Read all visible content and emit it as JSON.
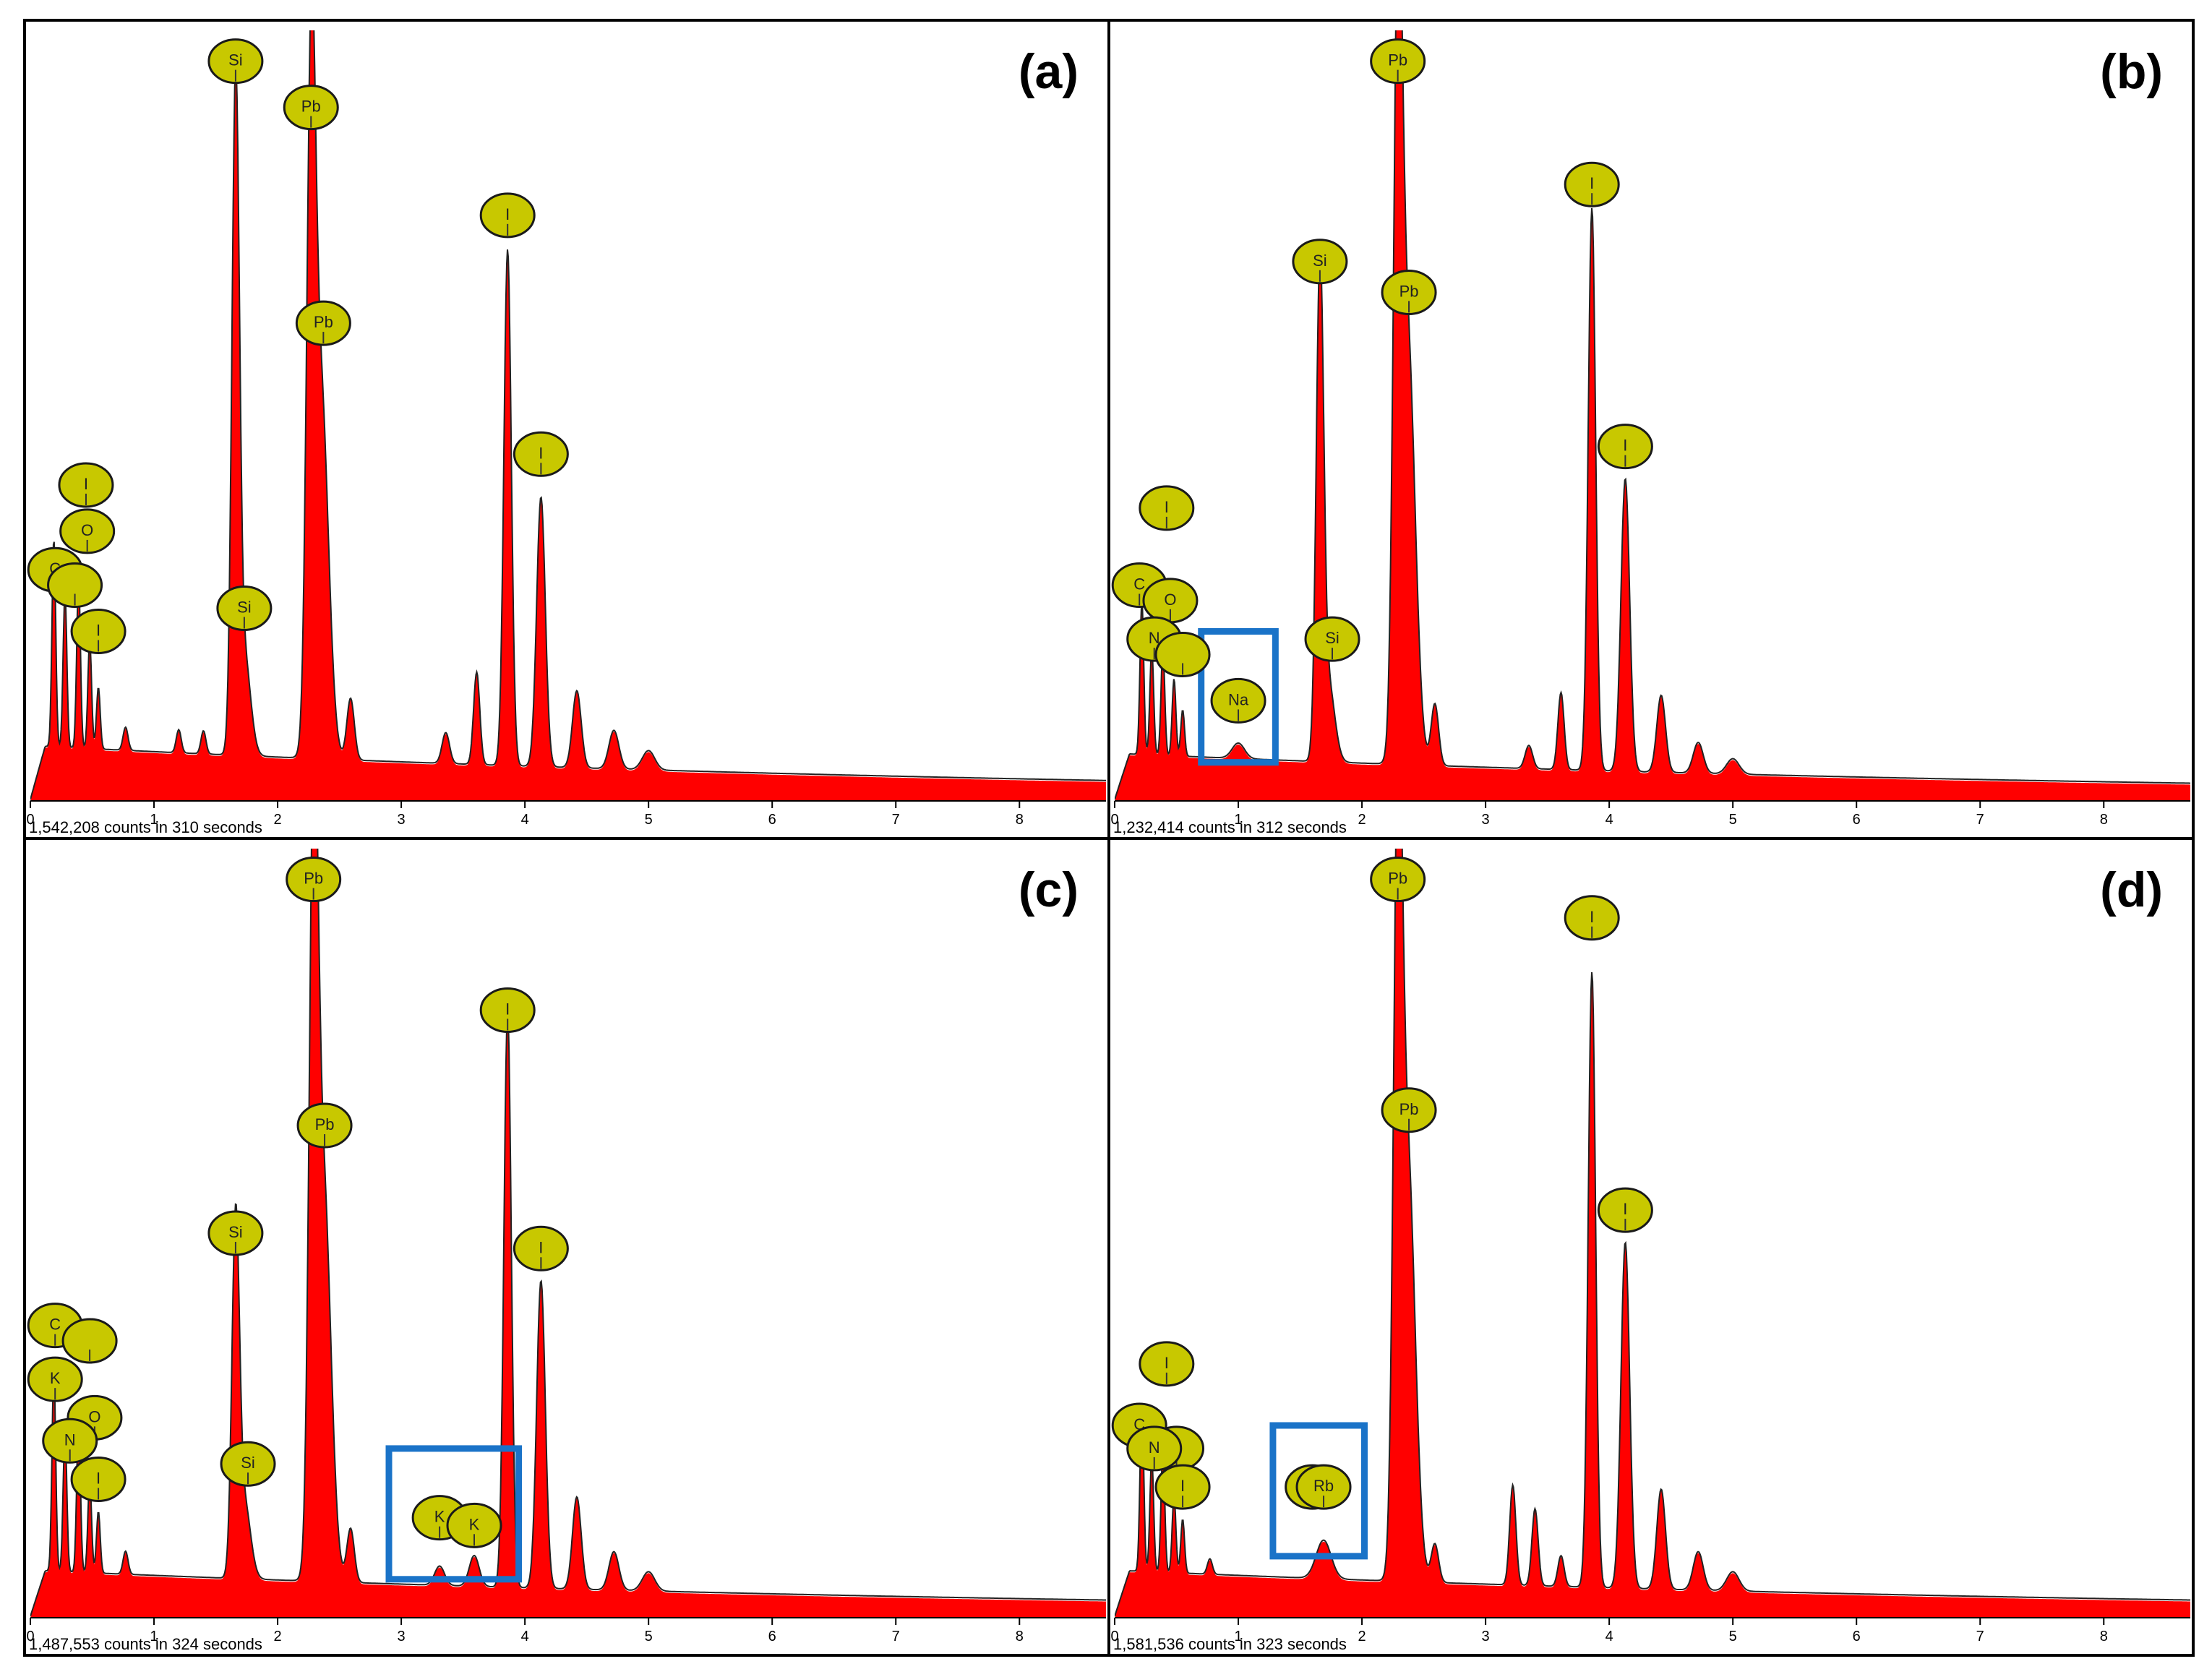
{
  "chart_data": [
    {
      "type": "area",
      "panel_label": "(a)",
      "caption": "1,542,208 counts in 310 seconds",
      "xlabel": "",
      "ylabel": "",
      "xlim": [
        0,
        8.7
      ],
      "x_ticks": [
        0,
        1,
        2,
        3,
        4,
        5,
        6,
        7,
        8
      ],
      "ylim": [
        0,
        100
      ],
      "baseline": 7,
      "peaks": [
        {
          "x": 0.19,
          "h": 27,
          "w": 0.015
        },
        {
          "x": 0.28,
          "h": 20,
          "w": 0.015
        },
        {
          "x": 0.39,
          "h": 22,
          "w": 0.015
        },
        {
          "x": 0.48,
          "h": 14,
          "w": 0.015
        },
        {
          "x": 0.55,
          "h": 8,
          "w": 0.015
        },
        {
          "x": 0.77,
          "h": 3,
          "w": 0.02
        },
        {
          "x": 1.2,
          "h": 3,
          "w": 0.02
        },
        {
          "x": 1.4,
          "h": 3,
          "w": 0.02
        },
        {
          "x": 1.66,
          "h": 85,
          "w": 0.03
        },
        {
          "x": 1.73,
          "h": 13,
          "w": 0.05
        },
        {
          "x": 2.27,
          "h": 80,
          "w": 0.035
        },
        {
          "x": 2.35,
          "h": 48,
          "w": 0.06
        },
        {
          "x": 2.59,
          "h": 8,
          "w": 0.03
        },
        {
          "x": 3.36,
          "h": 4,
          "w": 0.03
        },
        {
          "x": 3.61,
          "h": 12,
          "w": 0.025
        },
        {
          "x": 3.86,
          "h": 67,
          "w": 0.03
        },
        {
          "x": 4.13,
          "h": 35,
          "w": 0.035
        },
        {
          "x": 4.42,
          "h": 10,
          "w": 0.035
        },
        {
          "x": 4.72,
          "h": 5,
          "w": 0.04
        },
        {
          "x": 5.0,
          "h": 2.5,
          "w": 0.05
        }
      ],
      "element_markers": [
        {
          "label": "Si",
          "x": 1.66,
          "y": 96
        },
        {
          "label": "Pb",
          "x": 2.27,
          "y": 90
        },
        {
          "label": "Pb",
          "x": 2.37,
          "y": 62
        },
        {
          "label": "I",
          "x": 3.86,
          "y": 76
        },
        {
          "label": "I",
          "x": 4.13,
          "y": 45
        },
        {
          "label": "Si",
          "x": 1.73,
          "y": 25
        },
        {
          "label": "I",
          "x": 0.45,
          "y": 41
        },
        {
          "label": "O",
          "x": 0.46,
          "y": 35
        },
        {
          "label": "C",
          "x": 0.2,
          "y": 30
        },
        {
          "label": "",
          "x": 0.36,
          "y": 28
        },
        {
          "label": "I",
          "x": 0.55,
          "y": 22
        }
      ],
      "highlight": null
    },
    {
      "type": "area",
      "panel_label": "(b)",
      "caption": "1,232,414 counts in 312 seconds",
      "xlabel": "",
      "ylabel": "",
      "xlim": [
        0,
        8.7
      ],
      "x_ticks": [
        0,
        1,
        2,
        3,
        4,
        5,
        6,
        7,
        8
      ],
      "ylim": [
        0,
        100
      ],
      "baseline": 6,
      "peaks": [
        {
          "x": 0.22,
          "h": 20,
          "w": 0.015
        },
        {
          "x": 0.3,
          "h": 14,
          "w": 0.015
        },
        {
          "x": 0.39,
          "h": 14,
          "w": 0.015
        },
        {
          "x": 0.48,
          "h": 10,
          "w": 0.015
        },
        {
          "x": 0.55,
          "h": 6,
          "w": 0.015
        },
        {
          "x": 1.0,
          "h": 2,
          "w": 0.05
        },
        {
          "x": 1.66,
          "h": 63,
          "w": 0.03
        },
        {
          "x": 1.73,
          "h": 10,
          "w": 0.05
        },
        {
          "x": 2.29,
          "h": 90,
          "w": 0.035
        },
        {
          "x": 2.37,
          "h": 55,
          "w": 0.06
        },
        {
          "x": 2.59,
          "h": 8,
          "w": 0.03
        },
        {
          "x": 3.35,
          "h": 3,
          "w": 0.03
        },
        {
          "x": 3.61,
          "h": 10,
          "w": 0.025
        },
        {
          "x": 3.86,
          "h": 73,
          "w": 0.03
        },
        {
          "x": 4.13,
          "h": 38,
          "w": 0.035
        },
        {
          "x": 4.42,
          "h": 10,
          "w": 0.035
        },
        {
          "x": 4.72,
          "h": 4,
          "w": 0.04
        },
        {
          "x": 5.0,
          "h": 2,
          "w": 0.05
        }
      ],
      "element_markers": [
        {
          "label": "Pb",
          "x": 2.29,
          "y": 96
        },
        {
          "label": "I",
          "x": 3.86,
          "y": 80
        },
        {
          "label": "Si",
          "x": 1.66,
          "y": 70
        },
        {
          "label": "Pb",
          "x": 2.38,
          "y": 66
        },
        {
          "label": "I",
          "x": 4.13,
          "y": 46
        },
        {
          "label": "Si",
          "x": 1.76,
          "y": 21
        },
        {
          "label": "I",
          "x": 0.42,
          "y": 38
        },
        {
          "label": "C",
          "x": 0.2,
          "y": 28
        },
        {
          "label": "O",
          "x": 0.45,
          "y": 26
        },
        {
          "label": "N",
          "x": 0.32,
          "y": 21
        },
        {
          "label": "",
          "x": 0.55,
          "y": 19
        },
        {
          "label": "Na",
          "x": 1.0,
          "y": 13
        }
      ],
      "highlight": {
        "x0": 0.7,
        "x1": 1.3,
        "y0": 5,
        "y1": 22
      }
    },
    {
      "type": "area",
      "panel_label": "(c)",
      "caption": "1,487,553 counts in 324 seconds",
      "xlabel": "",
      "ylabel": "",
      "xlim": [
        0,
        8.7
      ],
      "x_ticks": [
        0,
        1,
        2,
        3,
        4,
        5,
        6,
        7,
        8
      ],
      "ylim": [
        0,
        100
      ],
      "baseline": 6,
      "peaks": [
        {
          "x": 0.19,
          "h": 26,
          "w": 0.015
        },
        {
          "x": 0.28,
          "h": 18,
          "w": 0.015
        },
        {
          "x": 0.39,
          "h": 20,
          "w": 0.015
        },
        {
          "x": 0.48,
          "h": 12,
          "w": 0.015
        },
        {
          "x": 0.55,
          "h": 8,
          "w": 0.015
        },
        {
          "x": 0.77,
          "h": 3,
          "w": 0.02
        },
        {
          "x": 1.66,
          "h": 45,
          "w": 0.03
        },
        {
          "x": 1.73,
          "h": 10,
          "w": 0.05
        },
        {
          "x": 2.29,
          "h": 90,
          "w": 0.035
        },
        {
          "x": 2.37,
          "h": 52,
          "w": 0.06
        },
        {
          "x": 2.59,
          "h": 7,
          "w": 0.03
        },
        {
          "x": 3.31,
          "h": 2.5,
          "w": 0.04
        },
        {
          "x": 3.59,
          "h": 4,
          "w": 0.04
        },
        {
          "x": 3.86,
          "h": 75,
          "w": 0.03
        },
        {
          "x": 4.13,
          "h": 40,
          "w": 0.035
        },
        {
          "x": 4.42,
          "h": 12,
          "w": 0.035
        },
        {
          "x": 4.72,
          "h": 5,
          "w": 0.04
        },
        {
          "x": 5.0,
          "h": 2.5,
          "w": 0.05
        }
      ],
      "element_markers": [
        {
          "label": "Pb",
          "x": 2.29,
          "y": 96
        },
        {
          "label": "I",
          "x": 3.86,
          "y": 79
        },
        {
          "label": "Pb",
          "x": 2.38,
          "y": 64
        },
        {
          "label": "Si",
          "x": 1.66,
          "y": 50
        },
        {
          "label": "I",
          "x": 4.13,
          "y": 48
        },
        {
          "label": "Si",
          "x": 1.76,
          "y": 20
        },
        {
          "label": "C",
          "x": 0.2,
          "y": 38
        },
        {
          "label": "",
          "x": 0.48,
          "y": 36
        },
        {
          "label": "K",
          "x": 0.2,
          "y": 31
        },
        {
          "label": "O",
          "x": 0.52,
          "y": 26
        },
        {
          "label": "N",
          "x": 0.32,
          "y": 23
        },
        {
          "label": "I",
          "x": 0.55,
          "y": 18
        },
        {
          "label": "K",
          "x": 3.31,
          "y": 13
        },
        {
          "label": "K",
          "x": 3.59,
          "y": 12
        }
      ],
      "highlight": {
        "x0": 2.9,
        "x1": 3.95,
        "y0": 5,
        "y1": 22
      }
    },
    {
      "type": "area",
      "panel_label": "(d)",
      "caption": "1,581,536 counts in 323 seconds",
      "xlabel": "",
      "ylabel": "",
      "xlim": [
        0,
        8.7
      ],
      "x_ticks": [
        0,
        1,
        2,
        3,
        4,
        5,
        6,
        7,
        8
      ],
      "ylim": [
        0,
        100
      ],
      "baseline": 6,
      "peaks": [
        {
          "x": 0.22,
          "h": 22,
          "w": 0.015
        },
        {
          "x": 0.3,
          "h": 15,
          "w": 0.015
        },
        {
          "x": 0.39,
          "h": 16,
          "w": 0.015
        },
        {
          "x": 0.48,
          "h": 10,
          "w": 0.015
        },
        {
          "x": 0.55,
          "h": 7,
          "w": 0.015
        },
        {
          "x": 0.77,
          "h": 2,
          "w": 0.02
        },
        {
          "x": 1.69,
          "h": 5,
          "w": 0.06
        },
        {
          "x": 2.29,
          "h": 90,
          "w": 0.035
        },
        {
          "x": 2.37,
          "h": 55,
          "w": 0.06
        },
        {
          "x": 2.59,
          "h": 5,
          "w": 0.03
        },
        {
          "x": 3.22,
          "h": 13,
          "w": 0.025
        },
        {
          "x": 3.4,
          "h": 10,
          "w": 0.025
        },
        {
          "x": 3.61,
          "h": 4,
          "w": 0.025
        },
        {
          "x": 3.86,
          "h": 80,
          "w": 0.03
        },
        {
          "x": 4.13,
          "h": 45,
          "w": 0.035
        },
        {
          "x": 4.42,
          "h": 13,
          "w": 0.035
        },
        {
          "x": 4.72,
          "h": 5,
          "w": 0.04
        },
        {
          "x": 5.0,
          "h": 2.5,
          "w": 0.05
        }
      ],
      "element_markers": [
        {
          "label": "Pb",
          "x": 2.29,
          "y": 96
        },
        {
          "label": "I",
          "x": 3.86,
          "y": 91
        },
        {
          "label": "Pb",
          "x": 2.38,
          "y": 66
        },
        {
          "label": "I",
          "x": 4.13,
          "y": 53
        },
        {
          "label": "I",
          "x": 0.42,
          "y": 33
        },
        {
          "label": "C",
          "x": 0.2,
          "y": 25
        },
        {
          "label": "",
          "x": 0.5,
          "y": 22
        },
        {
          "label": "N",
          "x": 0.32,
          "y": 22
        },
        {
          "label": "I",
          "x": 0.55,
          "y": 17
        },
        {
          "label": "",
          "x": 1.6,
          "y": 17
        },
        {
          "label": "Rb",
          "x": 1.69,
          "y": 17
        }
      ],
      "highlight": {
        "x0": 1.28,
        "x1": 2.02,
        "y0": 8,
        "y1": 25
      }
    }
  ]
}
